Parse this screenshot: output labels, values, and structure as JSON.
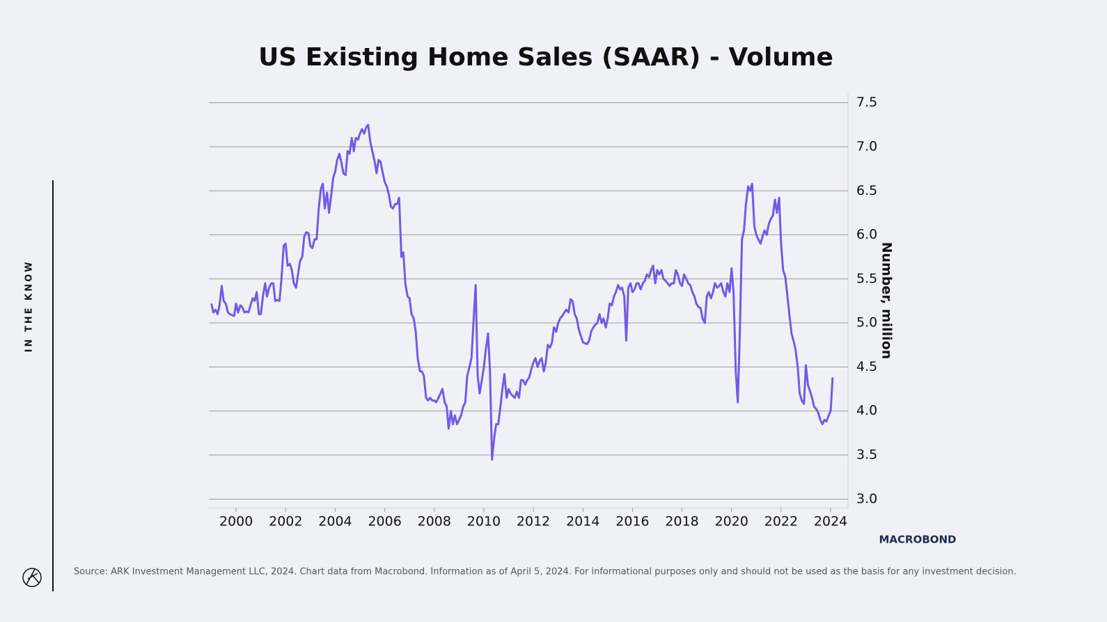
{
  "side_label": "IN THE KNOW",
  "source": "Source: ARK Investment Management LLC, 2024. Chart data from Macrobond. Information as of April 5, 2024. For informational purposes only and should not be used as the basis for any investment decision.",
  "logo": "MACROBOND",
  "chart_data": {
    "type": "line",
    "title": "US Existing Home Sales (SAAR) - Volume",
    "y_label": "Number, million",
    "color": "#7459e6",
    "grid": true,
    "xlim": [
      1998.9,
      2024.7
    ],
    "xticks": [
      2000,
      2002,
      2004,
      2006,
      2008,
      2010,
      2012,
      2014,
      2016,
      2018,
      2020,
      2022,
      2024
    ],
    "ylim": [
      2.9,
      7.6
    ],
    "yticks": [
      {
        "value": 3,
        "label": "3.0"
      },
      3.5,
      {
        "value": 4,
        "label": "4.0"
      },
      4.5,
      {
        "value": 5,
        "label": "5.0"
      },
      5.5,
      {
        "value": 6,
        "label": "6.0"
      },
      6.5,
      {
        "value": 7,
        "label": "7.0"
      },
      7.5
    ],
    "x": [
      1999.0,
      1999.08,
      1999.17,
      1999.25,
      1999.33,
      1999.42,
      1999.5,
      1999.58,
      1999.67,
      1999.75,
      1999.83,
      1999.92,
      2000.0,
      2000.08,
      2000.17,
      2000.25,
      2000.33,
      2000.42,
      2000.5,
      2000.58,
      2000.67,
      2000.75,
      2000.83,
      2000.92,
      2001.0,
      2001.08,
      2001.17,
      2001.25,
      2001.33,
      2001.42,
      2001.5,
      2001.58,
      2001.67,
      2001.75,
      2001.83,
      2001.92,
      2002.0,
      2002.08,
      2002.17,
      2002.25,
      2002.33,
      2002.42,
      2002.5,
      2002.58,
      2002.67,
      2002.75,
      2002.83,
      2002.92,
      2003.0,
      2003.08,
      2003.17,
      2003.25,
      2003.33,
      2003.42,
      2003.5,
      2003.58,
      2003.67,
      2003.75,
      2003.83,
      2003.92,
      2004.0,
      2004.08,
      2004.17,
      2004.25,
      2004.33,
      2004.42,
      2004.5,
      2004.58,
      2004.67,
      2004.75,
      2004.83,
      2004.92,
      2005.0,
      2005.08,
      2005.17,
      2005.25,
      2005.33,
      2005.42,
      2005.5,
      2005.58,
      2005.67,
      2005.75,
      2005.83,
      2005.92,
      2006.0,
      2006.08,
      2006.17,
      2006.25,
      2006.33,
      2006.42,
      2006.5,
      2006.58,
      2006.67,
      2006.75,
      2006.83,
      2006.92,
      2007.0,
      2007.08,
      2007.17,
      2007.25,
      2007.33,
      2007.42,
      2007.5,
      2007.58,
      2007.67,
      2007.75,
      2007.83,
      2007.92,
      2008.0,
      2008.08,
      2008.17,
      2008.25,
      2008.33,
      2008.42,
      2008.5,
      2008.58,
      2008.67,
      2008.75,
      2008.83,
      2008.92,
      2009.0,
      2009.08,
      2009.17,
      2009.25,
      2009.33,
      2009.42,
      2009.5,
      2009.58,
      2009.67,
      2009.75,
      2009.83,
      2009.92,
      2010.0,
      2010.08,
      2010.17,
      2010.25,
      2010.33,
      2010.42,
      2010.5,
      2010.58,
      2010.67,
      2010.75,
      2010.83,
      2010.92,
      2011.0,
      2011.08,
      2011.17,
      2011.25,
      2011.33,
      2011.42,
      2011.5,
      2011.58,
      2011.67,
      2011.75,
      2011.83,
      2011.92,
      2012.0,
      2012.08,
      2012.17,
      2012.25,
      2012.33,
      2012.42,
      2012.5,
      2012.58,
      2012.67,
      2012.75,
      2012.83,
      2012.92,
      2013.0,
      2013.08,
      2013.17,
      2013.25,
      2013.33,
      2013.42,
      2013.5,
      2013.58,
      2013.67,
      2013.75,
      2013.83,
      2013.92,
      2014.0,
      2014.08,
      2014.17,
      2014.25,
      2014.33,
      2014.42,
      2014.5,
      2014.58,
      2014.67,
      2014.75,
      2014.83,
      2014.92,
      2015.0,
      2015.08,
      2015.17,
      2015.25,
      2015.33,
      2015.42,
      2015.5,
      2015.58,
      2015.67,
      2015.75,
      2015.83,
      2015.92,
      2016.0,
      2016.08,
      2016.17,
      2016.25,
      2016.33,
      2016.42,
      2016.5,
      2016.58,
      2016.67,
      2016.75,
      2016.83,
      2016.92,
      2017.0,
      2017.08,
      2017.17,
      2017.25,
      2017.33,
      2017.42,
      2017.5,
      2017.58,
      2017.67,
      2017.75,
      2017.83,
      2017.92,
      2018.0,
      2018.08,
      2018.17,
      2018.25,
      2018.33,
      2018.42,
      2018.5,
      2018.58,
      2018.67,
      2018.75,
      2018.83,
      2018.92,
      2019.0,
      2019.08,
      2019.17,
      2019.25,
      2019.33,
      2019.42,
      2019.5,
      2019.58,
      2019.67,
      2019.75,
      2019.83,
      2019.92,
      2020.0,
      2020.08,
      2020.17,
      2020.25,
      2020.33,
      2020.42,
      2020.5,
      2020.58,
      2020.67,
      2020.75,
      2020.83,
      2020.92,
      2021.0,
      2021.08,
      2021.17,
      2021.25,
      2021.33,
      2021.42,
      2021.5,
      2021.58,
      2021.67,
      2021.75,
      2021.83,
      2021.92,
      2022.0,
      2022.08,
      2022.17,
      2022.25,
      2022.33,
      2022.42,
      2022.5,
      2022.58,
      2022.67,
      2022.75,
      2022.83,
      2022.92,
      2023.0,
      2023.08,
      2023.17,
      2023.25,
      2023.33,
      2023.42,
      2023.5,
      2023.58,
      2023.67,
      2023.75,
      2023.83,
      2023.92,
      2024.0,
      2024.08
    ],
    "values": [
      5.22,
      5.12,
      5.15,
      5.1,
      5.2,
      5.42,
      5.25,
      5.22,
      5.12,
      5.1,
      5.09,
      5.08,
      5.22,
      5.12,
      5.2,
      5.18,
      5.12,
      5.13,
      5.12,
      5.2,
      5.28,
      5.25,
      5.35,
      5.1,
      5.1,
      5.3,
      5.45,
      5.3,
      5.4,
      5.45,
      5.45,
      5.25,
      5.26,
      5.25,
      5.5,
      5.88,
      5.9,
      5.65,
      5.67,
      5.6,
      5.45,
      5.4,
      5.55,
      5.7,
      5.75,
      5.98,
      6.03,
      6.02,
      5.87,
      5.85,
      5.95,
      5.95,
      6.28,
      6.52,
      6.58,
      6.3,
      6.48,
      6.25,
      6.43,
      6.65,
      6.72,
      6.85,
      6.92,
      6.82,
      6.7,
      6.68,
      6.95,
      6.92,
      7.1,
      6.95,
      7.1,
      7.08,
      7.15,
      7.2,
      7.15,
      7.22,
      7.25,
      7.05,
      6.95,
      6.85,
      6.7,
      6.85,
      6.83,
      6.7,
      6.6,
      6.55,
      6.45,
      6.32,
      6.3,
      6.35,
      6.35,
      6.42,
      5.75,
      5.8,
      5.45,
      5.3,
      5.28,
      5.1,
      5.05,
      4.9,
      4.6,
      4.45,
      4.45,
      4.4,
      4.15,
      4.12,
      4.15,
      4.12,
      4.12,
      4.1,
      4.15,
      4.2,
      4.25,
      4.1,
      4.05,
      3.8,
      4.0,
      3.85,
      3.95,
      3.85,
      3.9,
      3.95,
      4.05,
      4.1,
      4.4,
      4.5,
      4.6,
      5.0,
      5.43,
      4.4,
      4.2,
      4.35,
      4.5,
      4.7,
      4.88,
      4.45,
      3.45,
      3.7,
      3.85,
      3.85,
      4.05,
      4.25,
      4.42,
      4.15,
      4.25,
      4.2,
      4.17,
      4.15,
      4.22,
      4.15,
      4.35,
      4.35,
      4.3,
      4.35,
      4.38,
      4.48,
      4.55,
      4.6,
      4.5,
      4.57,
      4.6,
      4.45,
      4.55,
      4.75,
      4.72,
      4.78,
      4.95,
      4.9,
      5.0,
      5.05,
      5.08,
      5.12,
      5.15,
      5.12,
      5.27,
      5.25,
      5.1,
      5.05,
      4.93,
      4.85,
      4.78,
      4.77,
      4.76,
      4.8,
      4.9,
      4.95,
      4.98,
      5.0,
      5.1,
      5.0,
      5.05,
      4.95,
      5.05,
      5.22,
      5.2,
      5.3,
      5.35,
      5.43,
      5.38,
      5.4,
      5.3,
      4.8,
      5.4,
      5.45,
      5.35,
      5.38,
      5.45,
      5.45,
      5.38,
      5.45,
      5.48,
      5.55,
      5.52,
      5.6,
      5.65,
      5.45,
      5.6,
      5.55,
      5.6,
      5.5,
      5.48,
      5.45,
      5.42,
      5.45,
      5.45,
      5.6,
      5.55,
      5.45,
      5.42,
      5.55,
      5.5,
      5.45,
      5.43,
      5.35,
      5.3,
      5.22,
      5.18,
      5.17,
      5.05,
      5.0,
      5.3,
      5.35,
      5.28,
      5.35,
      5.45,
      5.4,
      5.42,
      5.45,
      5.35,
      5.3,
      5.45,
      5.35,
      5.62,
      5.35,
      4.45,
      4.1,
      4.85,
      5.95,
      6.05,
      6.35,
      6.55,
      6.5,
      6.58,
      6.1,
      6.0,
      5.95,
      5.9,
      5.98,
      6.05,
      6.0,
      6.12,
      6.18,
      6.22,
      6.4,
      6.25,
      6.42,
      5.9,
      5.6,
      5.52,
      5.32,
      5.1,
      4.88,
      4.8,
      4.7,
      4.5,
      4.2,
      4.12,
      4.08,
      4.52,
      4.3,
      4.22,
      4.15,
      4.05,
      4.02,
      3.98,
      3.9,
      3.85,
      3.9,
      3.88,
      3.95,
      4.0,
      4.38
    ]
  }
}
